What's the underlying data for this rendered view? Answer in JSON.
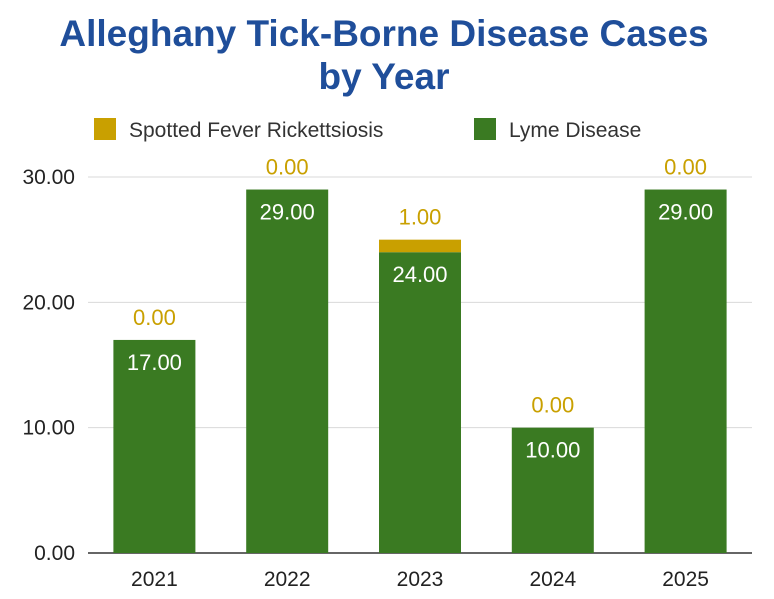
{
  "chart_data": {
    "type": "bar",
    "stacked": true,
    "title_lines": [
      "Alleghany Tick-Borne Disease Cases",
      "by Year"
    ],
    "categories": [
      "2021",
      "2022",
      "2023",
      "2024",
      "2025"
    ],
    "series": [
      {
        "name": "Lyme Disease",
        "values": [
          17,
          29,
          24,
          10,
          29
        ],
        "color": "#3a7a22"
      },
      {
        "name": "Spotted Fever Rickettsiosis",
        "values": [
          0,
          0,
          1,
          0,
          0
        ],
        "color": "#c9a000"
      }
    ],
    "legend_order": [
      "Spotted Fever Rickettsiosis",
      "Lyme Disease"
    ],
    "legend_position": "top",
    "ylim": [
      0,
      30
    ],
    "yticks": [
      "0.00",
      "10.00",
      "20.00",
      "30.00"
    ],
    "value_format": "0.00",
    "grid": true,
    "xlabel": "",
    "ylabel": ""
  }
}
